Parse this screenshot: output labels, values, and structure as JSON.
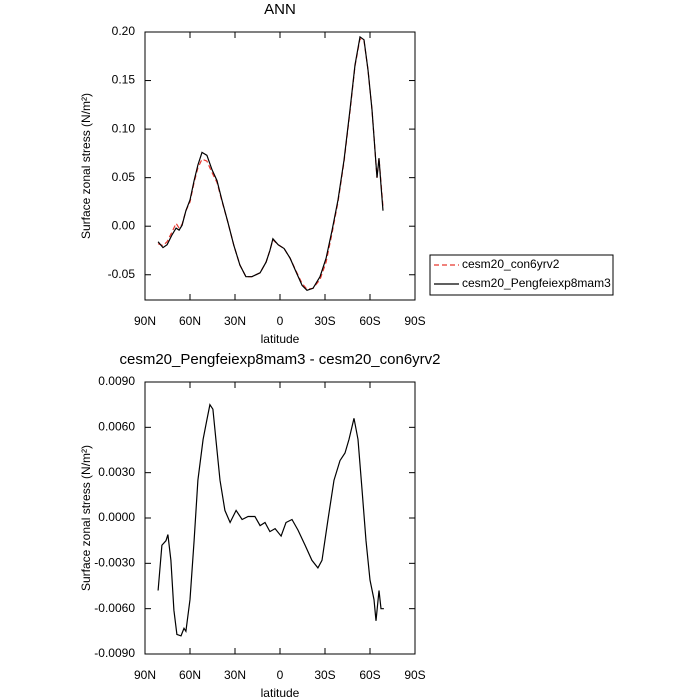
{
  "chart_data": [
    {
      "type": "line",
      "title": "ANN",
      "xlabel": "latitude",
      "ylabel": "Surface zonal stress (N/m²)",
      "x": [
        81.3,
        78,
        75.3,
        72,
        69.3,
        67.3,
        65.3,
        62.7,
        60,
        57.3,
        54.7,
        52,
        48.7,
        45.3,
        42,
        38.7,
        34.7,
        30.7,
        26.7,
        22.7,
        18.7,
        13.3,
        9.3,
        6.7,
        4.7,
        1.3,
        -2.7,
        -6.7,
        -10.7,
        -14.7,
        -18,
        -22,
        -26.7,
        -30.7,
        -34.7,
        -38.7,
        -42.7,
        -46.7,
        -50,
        -53.3,
        -56,
        -58.7,
        -61.3,
        -63.3,
        -64.7,
        -66,
        -67.3,
        -68.7
      ],
      "series": [
        {
          "name": "cesm20_con6yrv2",
          "color": "#e8382f",
          "linestyle": "dashed",
          "values": [
            -0.018,
            -0.02,
            -0.016,
            -0.006,
            0.003,
            -0.002,
            0.002,
            0.016,
            0.025,
            0.045,
            0.06,
            0.069,
            0.067,
            0.055,
            0.045,
            0.026,
            0.004,
            -0.02,
            -0.04,
            -0.052,
            -0.052,
            -0.048,
            -0.037,
            -0.025,
            -0.014,
            -0.019,
            -0.023,
            -0.033,
            -0.046,
            -0.059,
            -0.065,
            -0.064,
            -0.055,
            -0.037,
            -0.007,
            0.025,
            0.066,
            0.118,
            0.165,
            0.193,
            0.191,
            0.161,
            0.12,
            0.078,
            0.05,
            0.07,
            0.045,
            0.02
          ]
        },
        {
          "name": "cesm20_Pengfeiexp8mam3",
          "color": "#000000",
          "linestyle": "solid",
          "values": [
            -0.016,
            -0.022,
            -0.019,
            -0.009,
            -0.002,
            -0.004,
            0.001,
            0.016,
            0.027,
            0.047,
            0.063,
            0.076,
            0.073,
            0.058,
            0.047,
            0.027,
            0.004,
            -0.02,
            -0.04,
            -0.052,
            -0.052,
            -0.048,
            -0.037,
            -0.025,
            -0.013,
            -0.019,
            -0.023,
            -0.033,
            -0.047,
            -0.061,
            -0.066,
            -0.064,
            -0.052,
            -0.033,
            -0.004,
            0.027,
            0.068,
            0.12,
            0.166,
            0.195,
            0.192,
            0.161,
            0.12,
            0.078,
            0.05,
            0.07,
            0.042,
            0.016
          ]
        }
      ],
      "xlim": [
        90,
        -90
      ],
      "xticks": [
        {
          "value": 90,
          "label": "90N"
        },
        {
          "value": 60,
          "label": "60N"
        },
        {
          "value": 30,
          "label": "30N"
        },
        0,
        {
          "value": -30,
          "label": "30S"
        },
        {
          "value": -60,
          "label": "60S"
        },
        {
          "value": -90,
          "label": "90S"
        }
      ],
      "ylim": [
        -0.076,
        0.2
      ],
      "yticks": [
        {
          "value": 0.2,
          "label": "0.20"
        },
        0.15,
        {
          "value": 0.1,
          "label": "0.10"
        },
        0.05,
        {
          "value": 0,
          "label": "0.00"
        },
        -0.05
      ],
      "legend": "right"
    },
    {
      "type": "line",
      "title": "cesm20_Pengfeiexp8mam3 - cesm20_con6yrv2",
      "xlabel": "latitude",
      "ylabel": "Surface zonal stress (N/m²)",
      "x": [
        81.3,
        78.7,
        76,
        74.7,
        72.7,
        70.7,
        68.7,
        66,
        64,
        62.7,
        60,
        57.3,
        54.7,
        51.3,
        48.7,
        46.7,
        44.7,
        42.7,
        40,
        36.7,
        33.3,
        29.3,
        25.3,
        21.3,
        16.7,
        13.3,
        10,
        6.7,
        3.3,
        -0.7,
        -4,
        -8,
        -12,
        -16.7,
        -21.3,
        -25.3,
        -28,
        -32,
        -36,
        -40,
        -43.3,
        -46,
        -49.3,
        -52,
        -54.7,
        -57.3,
        -60,
        -62.7,
        -64,
        -66,
        -67.3,
        -69.3
      ],
      "series": [
        {
          "color": "#000000",
          "linestyle": "solid",
          "values": [
            -0.0048,
            -0.0018,
            -0.0015,
            -0.0011,
            -0.0028,
            -0.0061,
            -0.0077,
            -0.0078,
            -0.0073,
            -0.0075,
            -0.0054,
            -0.0015,
            0.0025,
            0.0052,
            0.0065,
            0.0075,
            0.0072,
            0.0052,
            0.0025,
            0.0005,
            -0.0003,
            0.0005,
            -0.0001,
            0.0001,
            0.0001,
            -0.0005,
            -0.0003,
            -0.0009,
            -0.0007,
            -0.0012,
            -0.0003,
            -0.0001,
            -0.0008,
            -0.0018,
            -0.0028,
            -0.0033,
            -0.0028,
            -0.0001,
            0.0025,
            0.0038,
            0.0043,
            0.0052,
            0.0066,
            0.0052,
            0.0019,
            -0.0015,
            -0.0041,
            -0.0054,
            -0.0068,
            -0.0048,
            -0.006,
            -0.006
          ]
        }
      ],
      "xlim": [
        90,
        -90
      ],
      "xticks": [
        {
          "value": 90,
          "label": "90N"
        },
        {
          "value": 60,
          "label": "60N"
        },
        {
          "value": 30,
          "label": "30N"
        },
        0,
        {
          "value": -30,
          "label": "30S"
        },
        {
          "value": -60,
          "label": "60S"
        },
        {
          "value": -90,
          "label": "90S"
        }
      ],
      "ylim": [
        -0.009,
        0.009
      ],
      "yticks": [
        {
          "value": 0.009,
          "label": "0.0090"
        },
        {
          "value": 0.006,
          "label": "0.0060"
        },
        {
          "value": 0.003,
          "label": "0.0030"
        },
        {
          "value": 0,
          "label": "0.0000"
        },
        {
          "value": -0.003,
          "label": "-0.0030"
        },
        {
          "value": -0.006,
          "label": "-0.0060"
        },
        {
          "value": -0.009,
          "label": "-0.0090"
        }
      ]
    }
  ]
}
